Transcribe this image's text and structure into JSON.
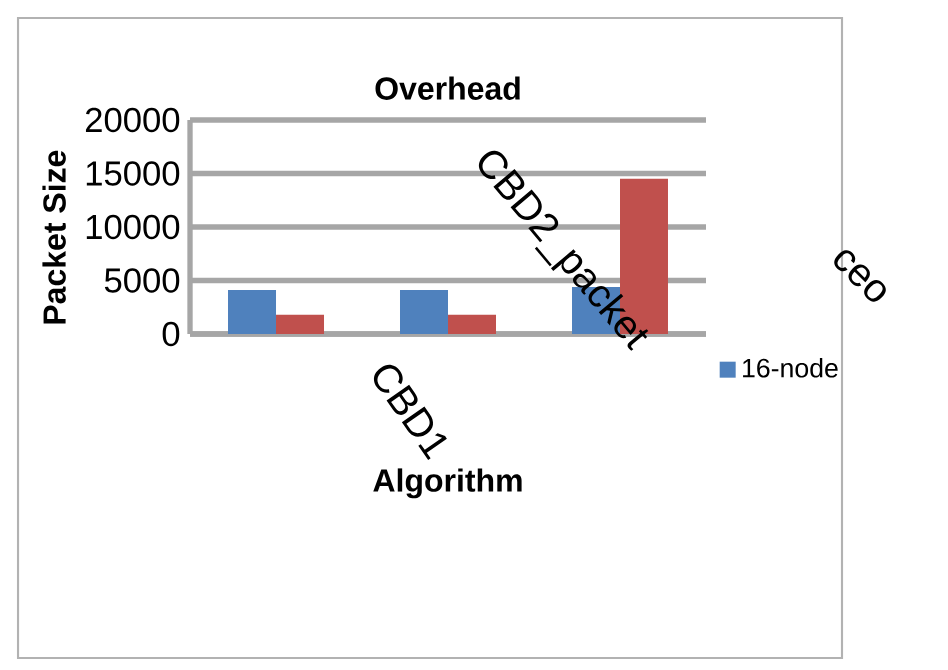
{
  "chart_data": {
    "type": "bar",
    "title": "Overhead",
    "xlabel": "Algorithm",
    "ylabel": "Packet Size",
    "categories": [
      null,
      null,
      null
    ],
    "series": [
      {
        "name": "16-node",
        "color": "#4f81bd",
        "values": [
          4100,
          4100,
          4400
        ]
      },
      {
        "color": "#c0504d",
        "values": [
          1800,
          1800,
          14500
        ]
      }
    ],
    "ylim": [
      0,
      20000
    ],
    "yticks": [
      0,
      5000,
      10000,
      15000,
      20000
    ],
    "grid": "y",
    "legend": "right",
    "tick_labels": "y",
    "annotations": [
      "CBD1",
      "CBD2_packet",
      "ceo"
    ]
  }
}
